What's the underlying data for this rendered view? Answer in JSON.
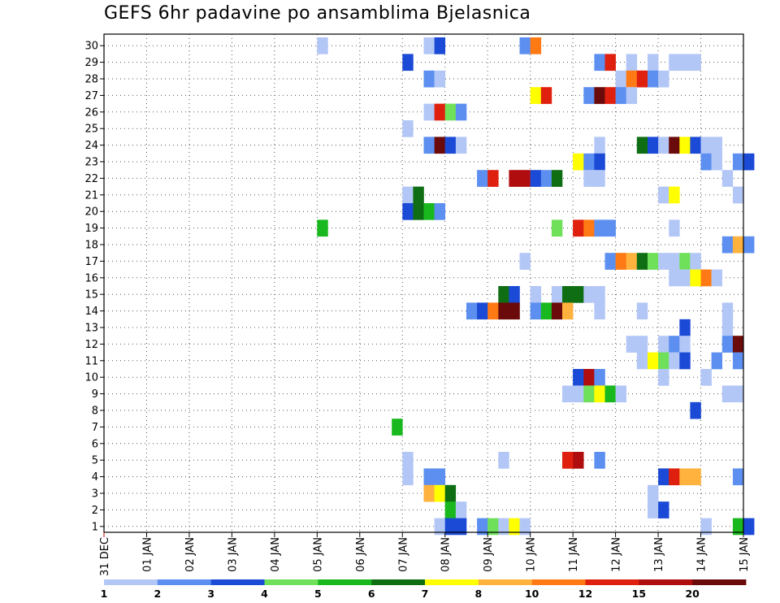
{
  "chart_data": {
    "type": "heatmap",
    "title": "GEFS 6hr padavine po ansamblima Bjelasnica",
    "xlabel": "",
    "ylabel": "",
    "x_ticks": [
      "31 DEC",
      "01 JAN",
      "02 JAN",
      "03 JAN",
      "04 JAN",
      "05 JAN",
      "06 JAN",
      "07 JAN",
      "08 JAN",
      "09 JAN",
      "10 JAN",
      "11 JAN",
      "12 JAN",
      "13 JAN",
      "14 JAN",
      "15 JAN"
    ],
    "x_range_days": [
      0,
      15
    ],
    "time_step_hours": 6,
    "y_members": [
      1,
      30
    ],
    "grid": true,
    "colorbar": {
      "levels": [
        "1",
        "2",
        "3",
        "4",
        "5",
        "6",
        "7",
        "8",
        "10",
        "12",
        "15",
        "20"
      ],
      "colors": [
        "#b3c7f7",
        "#5c8ff0",
        "#1a4ad6",
        "#6fe05a",
        "#19b81e",
        "#0f6e14",
        "#ffff00",
        "#ffb23d",
        "#ff7a14",
        "#e0200e",
        "#b00e0e",
        "#6b0a0a"
      ]
    },
    "cells": [
      {
        "m": 30,
        "t": "05 JAN 00Z",
        "c": 0
      },
      {
        "m": 30,
        "t": "07 JAN 12Z",
        "c": 0
      },
      {
        "m": 30,
        "t": "07 JAN 18Z",
        "c": 2
      },
      {
        "m": 30,
        "t": "09 JAN 18Z",
        "c": 1
      },
      {
        "m": 30,
        "t": "10 JAN 00Z",
        "c": 8
      },
      {
        "m": 29,
        "t": "07 JAN 00Z",
        "c": 2
      },
      {
        "m": 29,
        "t": "11 JAN 12Z",
        "c": 1
      },
      {
        "m": 29,
        "t": "11 JAN 18Z",
        "c": 9
      },
      {
        "m": 29,
        "t": "12 JAN 06Z",
        "c": 0
      },
      {
        "m": 29,
        "t": "12 JAN 18Z",
        "c": 0
      },
      {
        "m": 29,
        "t": "13 JAN 06Z",
        "c": 0
      },
      {
        "m": 29,
        "t": "13 JAN 12Z",
        "c": 0
      },
      {
        "m": 29,
        "t": "13 JAN 18Z",
        "c": 0
      },
      {
        "m": 28,
        "t": "07 JAN 12Z",
        "c": 1
      },
      {
        "m": 28,
        "t": "07 JAN 18Z",
        "c": 0
      },
      {
        "m": 28,
        "t": "12 JAN 00Z",
        "c": 0
      },
      {
        "m": 28,
        "t": "12 JAN 06Z",
        "c": 8
      },
      {
        "m": 28,
        "t": "12 JAN 12Z",
        "c": 9
      },
      {
        "m": 28,
        "t": "12 JAN 18Z",
        "c": 1
      },
      {
        "m": 28,
        "t": "13 JAN 00Z",
        "c": 0
      },
      {
        "m": 27,
        "t": "10 JAN 00Z",
        "c": 6
      },
      {
        "m": 27,
        "t": "10 JAN 06Z",
        "c": 9
      },
      {
        "m": 27,
        "t": "11 JAN 06Z",
        "c": 1
      },
      {
        "m": 27,
        "t": "11 JAN 12Z",
        "c": 11
      },
      {
        "m": 27,
        "t": "11 JAN 18Z",
        "c": 9
      },
      {
        "m": 27,
        "t": "12 JAN 00Z",
        "c": 1
      },
      {
        "m": 27,
        "t": "12 JAN 06Z",
        "c": 0
      },
      {
        "m": 26,
        "t": "07 JAN 12Z",
        "c": 0
      },
      {
        "m": 26,
        "t": "07 JAN 18Z",
        "c": 9
      },
      {
        "m": 26,
        "t": "08 JAN 00Z",
        "c": 3
      },
      {
        "m": 26,
        "t": "08 JAN 06Z",
        "c": 1
      },
      {
        "m": 25,
        "t": "07 JAN 00Z",
        "c": 0
      },
      {
        "m": 24,
        "t": "07 JAN 12Z",
        "c": 1
      },
      {
        "m": 24,
        "t": "07 JAN 18Z",
        "c": 11
      },
      {
        "m": 24,
        "t": "08 JAN 00Z",
        "c": 2
      },
      {
        "m": 24,
        "t": "08 JAN 06Z",
        "c": 0
      },
      {
        "m": 24,
        "t": "11 JAN 12Z",
        "c": 0
      },
      {
        "m": 24,
        "t": "12 JAN 12Z",
        "c": 5
      },
      {
        "m": 24,
        "t": "12 JAN 18Z",
        "c": 2
      },
      {
        "m": 24,
        "t": "13 JAN 00Z",
        "c": 0
      },
      {
        "m": 24,
        "t": "13 JAN 06Z",
        "c": 11
      },
      {
        "m": 24,
        "t": "13 JAN 12Z",
        "c": 6
      },
      {
        "m": 24,
        "t": "13 JAN 18Z",
        "c": 2
      },
      {
        "m": 24,
        "t": "14 JAN 00Z",
        "c": 0
      },
      {
        "m": 24,
        "t": "14 JAN 06Z",
        "c": 0
      },
      {
        "m": 23,
        "t": "11 JAN 00Z",
        "c": 6
      },
      {
        "m": 23,
        "t": "11 JAN 06Z",
        "c": 1
      },
      {
        "m": 23,
        "t": "11 JAN 12Z",
        "c": 2
      },
      {
        "m": 23,
        "t": "14 JAN 00Z",
        "c": 1
      },
      {
        "m": 23,
        "t": "14 JAN 06Z",
        "c": 0
      },
      {
        "m": 23,
        "t": "14 JAN 18Z",
        "c": 1
      },
      {
        "m": 23,
        "t": "15 JAN 00Z",
        "c": 2
      },
      {
        "m": 22,
        "t": "08 JAN 18Z",
        "c": 1
      },
      {
        "m": 22,
        "t": "09 JAN 00Z",
        "c": 9
      },
      {
        "m": 22,
        "t": "09 JAN 12Z",
        "c": 10
      },
      {
        "m": 22,
        "t": "09 JAN 18Z",
        "c": 10
      },
      {
        "m": 22,
        "t": "10 JAN 00Z",
        "c": 2
      },
      {
        "m": 22,
        "t": "10 JAN 06Z",
        "c": 1
      },
      {
        "m": 22,
        "t": "10 JAN 12Z",
        "c": 5
      },
      {
        "m": 22,
        "t": "11 JAN 06Z",
        "c": 0
      },
      {
        "m": 22,
        "t": "11 JAN 12Z",
        "c": 0
      },
      {
        "m": 22,
        "t": "14 JAN 12Z",
        "c": 0
      },
      {
        "m": 21,
        "t": "07 JAN 00Z",
        "c": 0
      },
      {
        "m": 21,
        "t": "07 JAN 06Z",
        "c": 5
      },
      {
        "m": 21,
        "t": "13 JAN 00Z",
        "c": 0
      },
      {
        "m": 21,
        "t": "13 JAN 06Z",
        "c": 6
      },
      {
        "m": 21,
        "t": "14 JAN 18Z",
        "c": 0
      },
      {
        "m": 20,
        "t": "07 JAN 00Z",
        "c": 2
      },
      {
        "m": 20,
        "t": "07 JAN 06Z",
        "c": 5
      },
      {
        "m": 20,
        "t": "07 JAN 12Z",
        "c": 4
      },
      {
        "m": 20,
        "t": "07 JAN 18Z",
        "c": 1
      },
      {
        "m": 19,
        "t": "05 JAN 00Z",
        "c": 4
      },
      {
        "m": 19,
        "t": "10 JAN 12Z",
        "c": 3
      },
      {
        "m": 19,
        "t": "11 JAN 00Z",
        "c": 9
      },
      {
        "m": 19,
        "t": "11 JAN 06Z",
        "c": 8
      },
      {
        "m": 19,
        "t": "11 JAN 12Z",
        "c": 1
      },
      {
        "m": 19,
        "t": "11 JAN 18Z",
        "c": 1
      },
      {
        "m": 19,
        "t": "13 JAN 06Z",
        "c": 0
      },
      {
        "m": 18,
        "t": "14 JAN 12Z",
        "c": 1
      },
      {
        "m": 18,
        "t": "14 JAN 18Z",
        "c": 7
      },
      {
        "m": 18,
        "t": "15 JAN 00Z",
        "c": 1
      },
      {
        "m": 17,
        "t": "09 JAN 18Z",
        "c": 0
      },
      {
        "m": 17,
        "t": "11 JAN 18Z",
        "c": 1
      },
      {
        "m": 17,
        "t": "12 JAN 00Z",
        "c": 8
      },
      {
        "m": 17,
        "t": "12 JAN 06Z",
        "c": 7
      },
      {
        "m": 17,
        "t": "12 JAN 12Z",
        "c": 5
      },
      {
        "m": 17,
        "t": "12 JAN 18Z",
        "c": 3
      },
      {
        "m": 17,
        "t": "13 JAN 00Z",
        "c": 0
      },
      {
        "m": 17,
        "t": "13 JAN 06Z",
        "c": 0
      },
      {
        "m": 17,
        "t": "13 JAN 12Z",
        "c": 3
      },
      {
        "m": 17,
        "t": "13 JAN 18Z",
        "c": 0
      },
      {
        "m": 16,
        "t": "13 JAN 06Z",
        "c": 0
      },
      {
        "m": 16,
        "t": "13 JAN 12Z",
        "c": 0
      },
      {
        "m": 16,
        "t": "13 JAN 18Z",
        "c": 6
      },
      {
        "m": 16,
        "t": "14 JAN 00Z",
        "c": 8
      },
      {
        "m": 16,
        "t": "14 JAN 06Z",
        "c": 0
      },
      {
        "m": 15,
        "t": "09 JAN 06Z",
        "c": 5
      },
      {
        "m": 15,
        "t": "09 JAN 12Z",
        "c": 2
      },
      {
        "m": 15,
        "t": "10 JAN 00Z",
        "c": 0
      },
      {
        "m": 15,
        "t": "10 JAN 12Z",
        "c": 0
      },
      {
        "m": 15,
        "t": "10 JAN 18Z",
        "c": 5
      },
      {
        "m": 15,
        "t": "11 JAN 00Z",
        "c": 5
      },
      {
        "m": 15,
        "t": "11 JAN 06Z",
        "c": 0
      },
      {
        "m": 15,
        "t": "11 JAN 12Z",
        "c": 0
      },
      {
        "m": 14,
        "t": "08 JAN 12Z",
        "c": 1
      },
      {
        "m": 14,
        "t": "08 JAN 18Z",
        "c": 2
      },
      {
        "m": 14,
        "t": "09 JAN 00Z",
        "c": 8
      },
      {
        "m": 14,
        "t": "09 JAN 06Z",
        "c": 11
      },
      {
        "m": 14,
        "t": "09 JAN 12Z",
        "c": 11
      },
      {
        "m": 14,
        "t": "10 JAN 00Z",
        "c": 1
      },
      {
        "m": 14,
        "t": "10 JAN 06Z",
        "c": 4
      },
      {
        "m": 14,
        "t": "10 JAN 12Z",
        "c": 11
      },
      {
        "m": 14,
        "t": "10 JAN 18Z",
        "c": 7
      },
      {
        "m": 14,
        "t": "11 JAN 12Z",
        "c": 0
      },
      {
        "m": 14,
        "t": "12 JAN 12Z",
        "c": 0
      },
      {
        "m": 14,
        "t": "14 JAN 12Z",
        "c": 0
      },
      {
        "m": 13,
        "t": "13 JAN 12Z",
        "c": 2
      },
      {
        "m": 13,
        "t": "14 JAN 12Z",
        "c": 0
      },
      {
        "m": 12,
        "t": "12 JAN 06Z",
        "c": 0
      },
      {
        "m": 12,
        "t": "12 JAN 12Z",
        "c": 0
      },
      {
        "m": 12,
        "t": "13 JAN 00Z",
        "c": 0
      },
      {
        "m": 12,
        "t": "13 JAN 06Z",
        "c": 1
      },
      {
        "m": 12,
        "t": "13 JAN 12Z",
        "c": 0
      },
      {
        "m": 12,
        "t": "14 JAN 12Z",
        "c": 1
      },
      {
        "m": 12,
        "t": "14 JAN 18Z",
        "c": 11
      },
      {
        "m": 11,
        "t": "12 JAN 12Z",
        "c": 0
      },
      {
        "m": 11,
        "t": "12 JAN 18Z",
        "c": 6
      },
      {
        "m": 11,
        "t": "13 JAN 00Z",
        "c": 3
      },
      {
        "m": 11,
        "t": "13 JAN 06Z",
        "c": 0
      },
      {
        "m": 11,
        "t": "13 JAN 12Z",
        "c": 2
      },
      {
        "m": 11,
        "t": "14 JAN 06Z",
        "c": 1
      },
      {
        "m": 11,
        "t": "14 JAN 18Z",
        "c": 1
      },
      {
        "m": 10,
        "t": "11 JAN 00Z",
        "c": 2
      },
      {
        "m": 10,
        "t": "11 JAN 06Z",
        "c": 10
      },
      {
        "m": 10,
        "t": "11 JAN 12Z",
        "c": 1
      },
      {
        "m": 10,
        "t": "13 JAN 00Z",
        "c": 0
      },
      {
        "m": 10,
        "t": "14 JAN 00Z",
        "c": 0
      },
      {
        "m": 9,
        "t": "10 JAN 18Z",
        "c": 0
      },
      {
        "m": 9,
        "t": "11 JAN 00Z",
        "c": 0
      },
      {
        "m": 9,
        "t": "11 JAN 06Z",
        "c": 3
      },
      {
        "m": 9,
        "t": "11 JAN 12Z",
        "c": 6
      },
      {
        "m": 9,
        "t": "11 JAN 18Z",
        "c": 4
      },
      {
        "m": 9,
        "t": "12 JAN 00Z",
        "c": 0
      },
      {
        "m": 9,
        "t": "14 JAN 12Z",
        "c": 0
      },
      {
        "m": 9,
        "t": "14 JAN 18Z",
        "c": 0
      },
      {
        "m": 8,
        "t": "13 JAN 18Z",
        "c": 2
      },
      {
        "m": 7,
        "t": "06 JAN 18Z",
        "c": 4
      },
      {
        "m": 5,
        "t": "07 JAN 00Z",
        "c": 0
      },
      {
        "m": 5,
        "t": "09 JAN 06Z",
        "c": 0
      },
      {
        "m": 5,
        "t": "10 JAN 18Z",
        "c": 9
      },
      {
        "m": 5,
        "t": "11 JAN 00Z",
        "c": 10
      },
      {
        "m": 5,
        "t": "11 JAN 12Z",
        "c": 1
      },
      {
        "m": 4,
        "t": "07 JAN 00Z",
        "c": 0
      },
      {
        "m": 4,
        "t": "07 JAN 12Z",
        "c": 1
      },
      {
        "m": 4,
        "t": "07 JAN 18Z",
        "c": 1
      },
      {
        "m": 4,
        "t": "13 JAN 00Z",
        "c": 2
      },
      {
        "m": 4,
        "t": "13 JAN 06Z",
        "c": 9
      },
      {
        "m": 4,
        "t": "13 JAN 12Z",
        "c": 7
      },
      {
        "m": 4,
        "t": "13 JAN 18Z",
        "c": 7
      },
      {
        "m": 4,
        "t": "14 JAN 18Z",
        "c": 1
      },
      {
        "m": 3,
        "t": "07 JAN 12Z",
        "c": 7
      },
      {
        "m": 3,
        "t": "07 JAN 18Z",
        "c": 6
      },
      {
        "m": 3,
        "t": "08 JAN 00Z",
        "c": 5
      },
      {
        "m": 3,
        "t": "12 JAN 18Z",
        "c": 0
      },
      {
        "m": 2,
        "t": "08 JAN 00Z",
        "c": 4
      },
      {
        "m": 2,
        "t": "08 JAN 06Z",
        "c": 0
      },
      {
        "m": 2,
        "t": "12 JAN 18Z",
        "c": 0
      },
      {
        "m": 2,
        "t": "13 JAN 00Z",
        "c": 2
      },
      {
        "m": 1,
        "t": "07 JAN 18Z",
        "c": 0
      },
      {
        "m": 1,
        "t": "08 JAN 00Z",
        "c": 2
      },
      {
        "m": 1,
        "t": "08 JAN 06Z",
        "c": 2
      },
      {
        "m": 1,
        "t": "08 JAN 18Z",
        "c": 1
      },
      {
        "m": 1,
        "t": "09 JAN 00Z",
        "c": 3
      },
      {
        "m": 1,
        "t": "09 JAN 06Z",
        "c": 0
      },
      {
        "m": 1,
        "t": "09 JAN 12Z",
        "c": 6
      },
      {
        "m": 1,
        "t": "09 JAN 18Z",
        "c": 0
      },
      {
        "m": 1,
        "t": "14 JAN 00Z",
        "c": 0
      },
      {
        "m": 1,
        "t": "14 JAN 18Z",
        "c": 4
      },
      {
        "m": 1,
        "t": "15 JAN 00Z",
        "c": 2
      }
    ]
  }
}
